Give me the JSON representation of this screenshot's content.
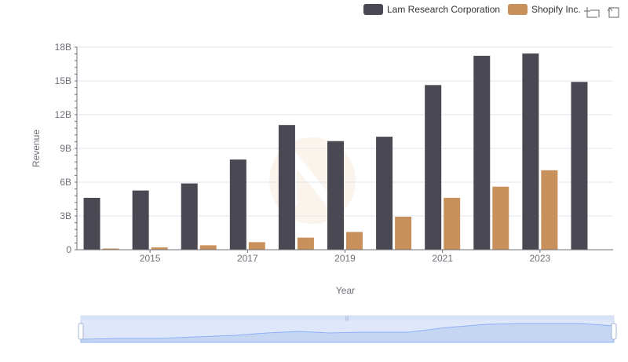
{
  "toolbox": {
    "zoom_icon": "zoom-icon",
    "restore_icon": "restore-icon"
  },
  "chart_data": {
    "type": "bar",
    "xlabel": "Year",
    "ylabel": "Revenue",
    "categories": [
      "2014",
      "2015",
      "2016",
      "2017",
      "2018",
      "2019",
      "2020",
      "2021",
      "2022",
      "2023",
      "2024"
    ],
    "x_tick_labels": [
      "2015",
      "2017",
      "2019",
      "2021",
      "2023"
    ],
    "y_tick_labels": [
      "0",
      "3B",
      "6B",
      "9B",
      "12B",
      "15B",
      "18B"
    ],
    "ylim": [
      0,
      18000000000
    ],
    "grid": true,
    "legend_position": "top-right",
    "series": [
      {
        "name": "Lam Research Corporation",
        "color": "#4a4953",
        "values": [
          4610000000,
          5260000000,
          5890000000,
          8010000000,
          11080000000,
          9650000000,
          10040000000,
          14630000000,
          17230000000,
          17430000000,
          14910000000
        ]
      },
      {
        "name": "Shopify Inc.",
        "color": "#c8915c",
        "values": [
          105000000,
          205000000,
          389000000,
          673000000,
          1073000000,
          1578000000,
          2929000000,
          4612000000,
          5600000000,
          7060000000,
          null
        ]
      }
    ]
  }
}
